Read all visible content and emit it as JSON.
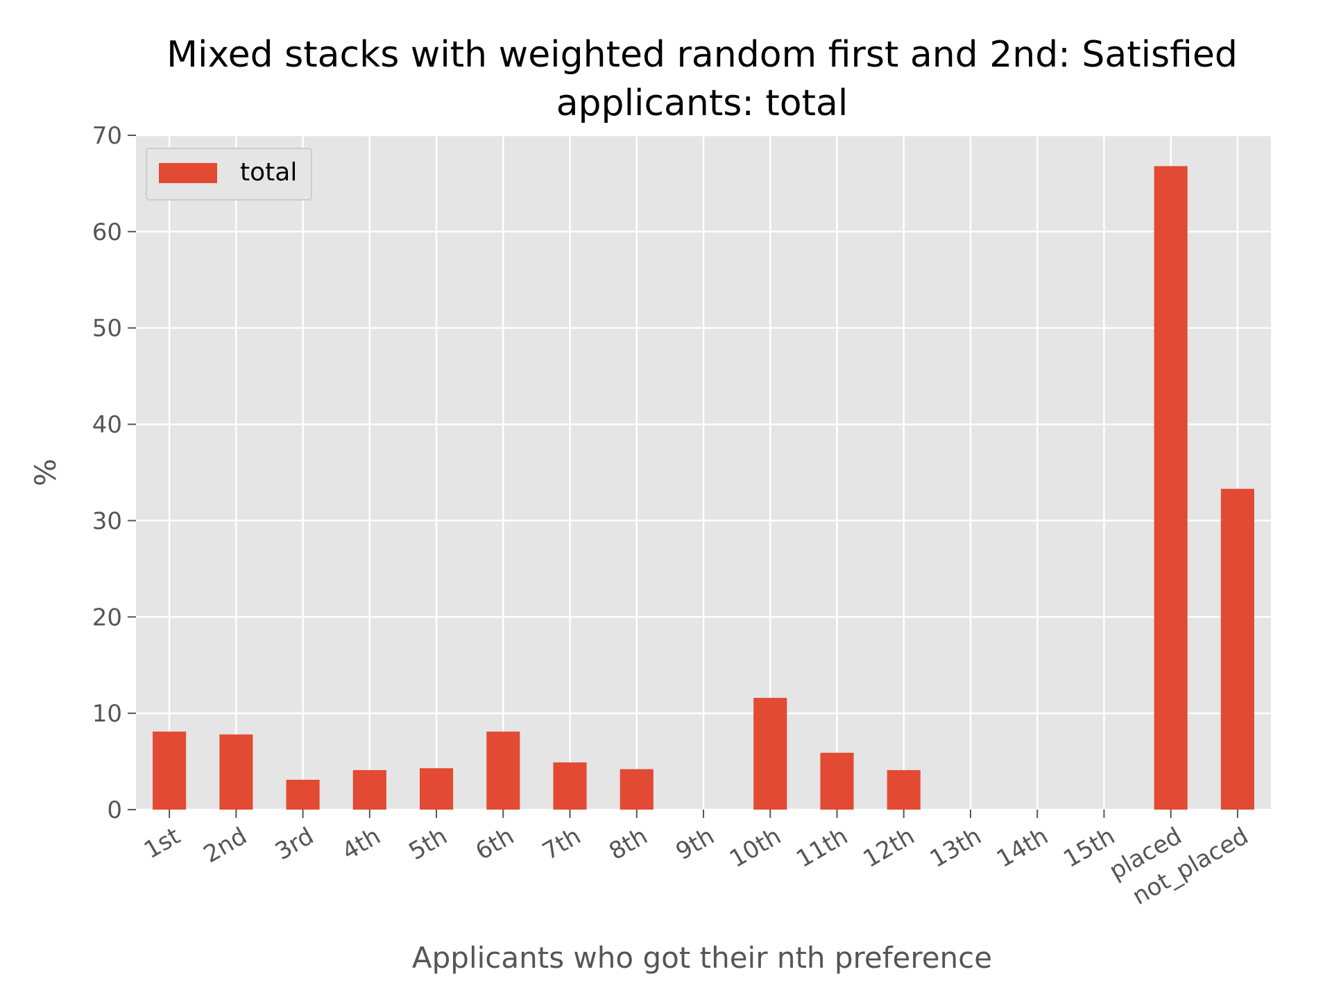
{
  "chart_data": {
    "type": "bar",
    "title_lines": [
      "Mixed stacks with weighted random first and 2nd: Satisfied",
      "applicants: total"
    ],
    "xlabel": "Applicants who got their nth preference",
    "ylabel": "%",
    "ylim": [
      0,
      70
    ],
    "yticks": [
      "0",
      "10",
      "20",
      "30",
      "40",
      "50",
      "60",
      "70"
    ],
    "ytick_values": [
      0,
      10,
      20,
      30,
      40,
      50,
      60,
      70
    ],
    "categories": [
      "1st",
      "2nd",
      "3rd",
      "4th",
      "5th",
      "6th",
      "7th",
      "8th",
      "9th",
      "10th",
      "11th",
      "12th",
      "13th",
      "14th",
      "15th",
      "placed",
      "not_placed"
    ],
    "series": [
      {
        "name": "total",
        "color": "#E24A33",
        "values": [
          8.1,
          7.8,
          3.1,
          4.1,
          4.3,
          8.1,
          4.9,
          4.2,
          0,
          11.6,
          5.9,
          4.1,
          0,
          0,
          0,
          66.8,
          33.3
        ]
      }
    ],
    "grid": true,
    "legend_position": "upper-left",
    "background_color": "#E5E5E5",
    "grid_color": "#FFFFFF"
  }
}
